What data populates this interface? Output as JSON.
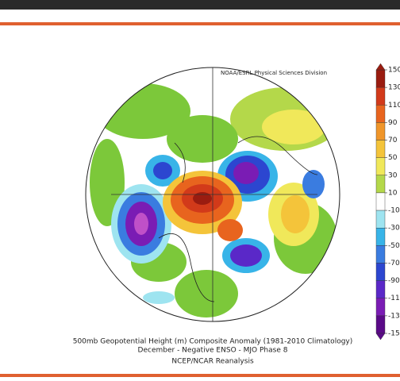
{
  "map": {
    "credit": "NOAA/ESRL Physical Sciences Division",
    "caption": [
      "500mb Geopotential Height (m) Composite Anomaly (1981-2010 Climatology)",
      "December - Negative ENSO - MJO Phase 8",
      "NCEP/NCAR Reanalysis"
    ],
    "colorbar": {
      "ticks": [
        150,
        130,
        110,
        90,
        70,
        50,
        30,
        10,
        -10,
        -30,
        -50,
        -70,
        -90,
        -110,
        -130,
        -150
      ],
      "colors": [
        "#9a1c10",
        "#d23a1a",
        "#e8641e",
        "#f0962a",
        "#f4c43a",
        "#f0e85a",
        "#b4d84a",
        "#ffffff",
        "#9ee4f0",
        "#38b4e8",
        "#3a7ce0",
        "#2c46d0",
        "#5a28c8",
        "#7a1cb4",
        "#5a0a88"
      ]
    }
  }
}
